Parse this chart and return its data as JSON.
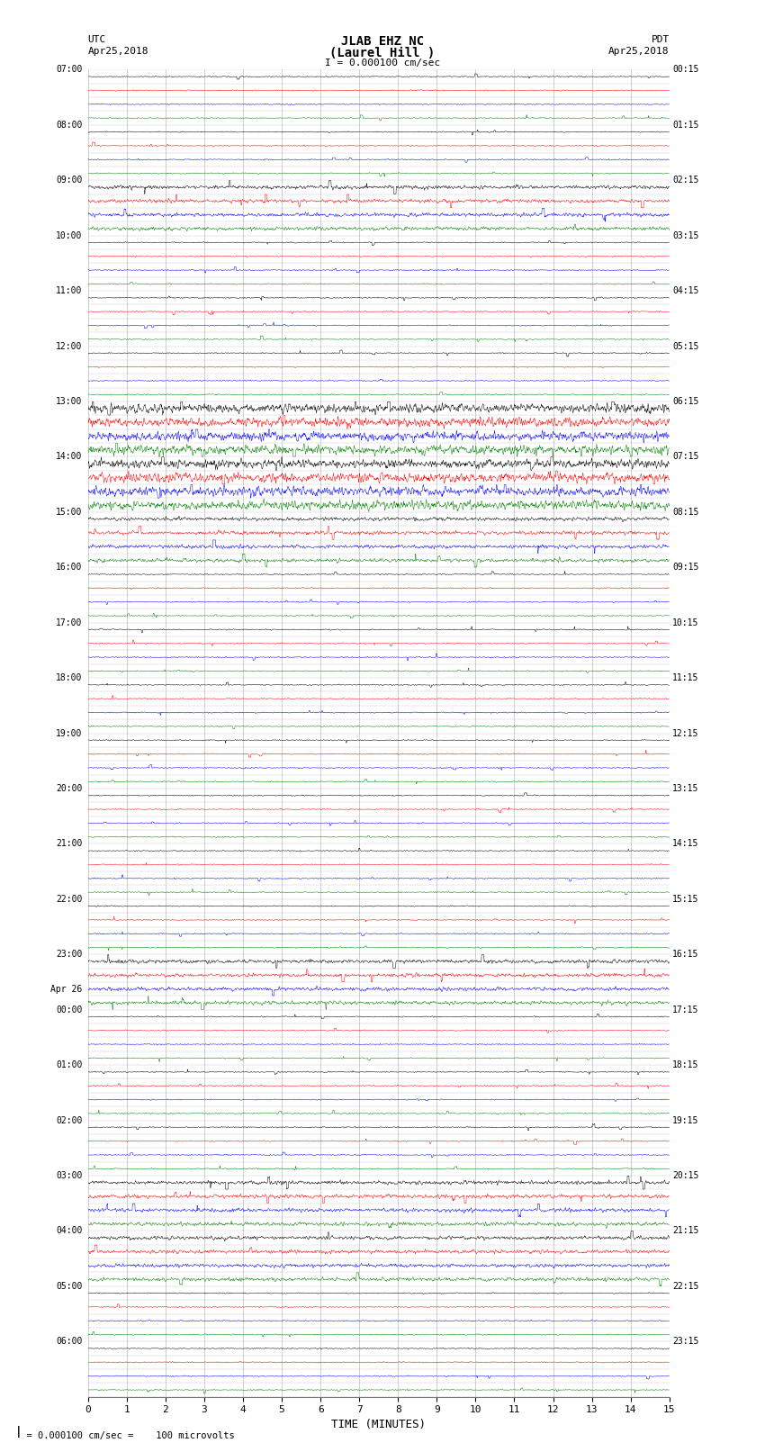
{
  "title_line1": "JLAB EHZ NC",
  "title_line2": "(Laurel Hill )",
  "scale_text": "I = 0.000100 cm/sec",
  "bottom_scale_text": "= 0.000100 cm/sec =    100 microvolts",
  "utc_label": "UTC",
  "utc_date": "Apr25,2018",
  "pdt_label": "PDT",
  "pdt_date": "Apr25,2018",
  "xlabel": "TIME (MINUTES)",
  "row_colors": [
    "black",
    "red",
    "blue",
    "green"
  ],
  "n_rows": 96,
  "background_color": "white",
  "grid_color": "#777777",
  "left_labels": [
    [
      "07:00",
      0
    ],
    [
      "08:00",
      4
    ],
    [
      "09:00",
      8
    ],
    [
      "10:00",
      12
    ],
    [
      "11:00",
      16
    ],
    [
      "12:00",
      20
    ],
    [
      "13:00",
      24
    ],
    [
      "14:00",
      28
    ],
    [
      "15:00",
      32
    ],
    [
      "16:00",
      36
    ],
    [
      "17:00",
      40
    ],
    [
      "18:00",
      44
    ],
    [
      "19:00",
      48
    ],
    [
      "20:00",
      52
    ],
    [
      "21:00",
      56
    ],
    [
      "22:00",
      60
    ],
    [
      "23:00",
      64
    ],
    [
      "Apr 26",
      67
    ],
    [
      "00:00",
      68
    ],
    [
      "01:00",
      72
    ],
    [
      "02:00",
      76
    ],
    [
      "03:00",
      80
    ],
    [
      "04:00",
      84
    ],
    [
      "05:00",
      88
    ],
    [
      "06:00",
      92
    ]
  ],
  "right_labels": [
    [
      "00:15",
      0
    ],
    [
      "01:15",
      4
    ],
    [
      "02:15",
      8
    ],
    [
      "03:15",
      12
    ],
    [
      "04:15",
      16
    ],
    [
      "05:15",
      20
    ],
    [
      "06:15",
      24
    ],
    [
      "07:15",
      28
    ],
    [
      "08:15",
      32
    ],
    [
      "09:15",
      36
    ],
    [
      "10:15",
      40
    ],
    [
      "11:15",
      44
    ],
    [
      "12:15",
      48
    ],
    [
      "13:15",
      52
    ],
    [
      "14:15",
      56
    ],
    [
      "15:15",
      60
    ],
    [
      "16:15",
      64
    ],
    [
      "17:15",
      68
    ],
    [
      "18:15",
      72
    ],
    [
      "19:15",
      76
    ],
    [
      "20:15",
      80
    ],
    [
      "21:15",
      84
    ],
    [
      "22:15",
      88
    ],
    [
      "23:15",
      92
    ]
  ],
  "noise_seed": 42,
  "fig_width": 8.5,
  "fig_height": 16.13,
  "dpi": 100
}
